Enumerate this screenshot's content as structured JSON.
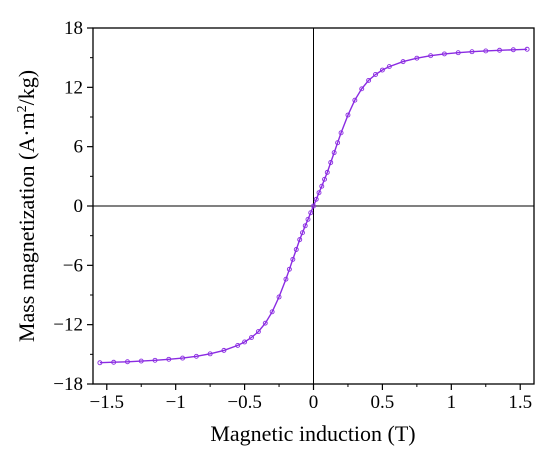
{
  "chart_data": {
    "type": "line",
    "title": "",
    "xlabel": "Magnetic induction (T)",
    "ylabel_parts": {
      "pre": "Mass magnetization (A·m",
      "sup": "2",
      "post": "/kg)"
    },
    "xlim": [
      -1.6,
      1.6
    ],
    "ylim": [
      -18,
      18
    ],
    "x_ticks": [
      -1.5,
      -1,
      -0.5,
      0,
      0.5,
      1,
      1.5
    ],
    "x_tick_labels": [
      "−1.5",
      "−1",
      "−0.5",
      "0",
      "0.5",
      "1",
      "1.5"
    ],
    "y_ticks": [
      -18,
      -12,
      -6,
      0,
      6,
      12,
      18
    ],
    "y_tick_labels": [
      "−18",
      "−12",
      "−6",
      "0",
      "6",
      "12",
      "18"
    ],
    "grid": false,
    "reference_lines": {
      "x": 0,
      "y": 0
    },
    "series": [
      {
        "color": "#8a2be2",
        "marker": "open-circle",
        "x": [
          -1.55,
          -1.45,
          -1.35,
          -1.25,
          -1.15,
          -1.05,
          -0.95,
          -0.85,
          -0.75,
          -0.65,
          -0.55,
          -0.5,
          -0.45,
          -0.4,
          -0.35,
          -0.3,
          -0.25,
          -0.2,
          -0.175,
          -0.15,
          -0.125,
          -0.1,
          -0.08,
          -0.06,
          -0.04,
          -0.02,
          0,
          0.02,
          0.04,
          0.06,
          0.08,
          0.1,
          0.125,
          0.15,
          0.175,
          0.2,
          0.25,
          0.3,
          0.35,
          0.4,
          0.45,
          0.5,
          0.55,
          0.65,
          0.75,
          0.85,
          0.95,
          1.05,
          1.15,
          1.25,
          1.35,
          1.45,
          1.55
        ],
        "y": [
          -15.85,
          -15.8,
          -15.75,
          -15.68,
          -15.6,
          -15.5,
          -15.38,
          -15.2,
          -14.95,
          -14.6,
          -14.1,
          -13.75,
          -13.3,
          -12.7,
          -11.85,
          -10.7,
          -9.2,
          -7.4,
          -6.4,
          -5.4,
          -4.4,
          -3.4,
          -2.7,
          -2.0,
          -1.35,
          -0.68,
          0,
          0.68,
          1.35,
          2.0,
          2.7,
          3.4,
          4.4,
          5.4,
          6.4,
          7.4,
          9.2,
          10.7,
          11.85,
          12.7,
          13.3,
          13.75,
          14.1,
          14.6,
          14.95,
          15.2,
          15.38,
          15.5,
          15.6,
          15.68,
          15.75,
          15.8,
          15.85
        ]
      }
    ]
  }
}
